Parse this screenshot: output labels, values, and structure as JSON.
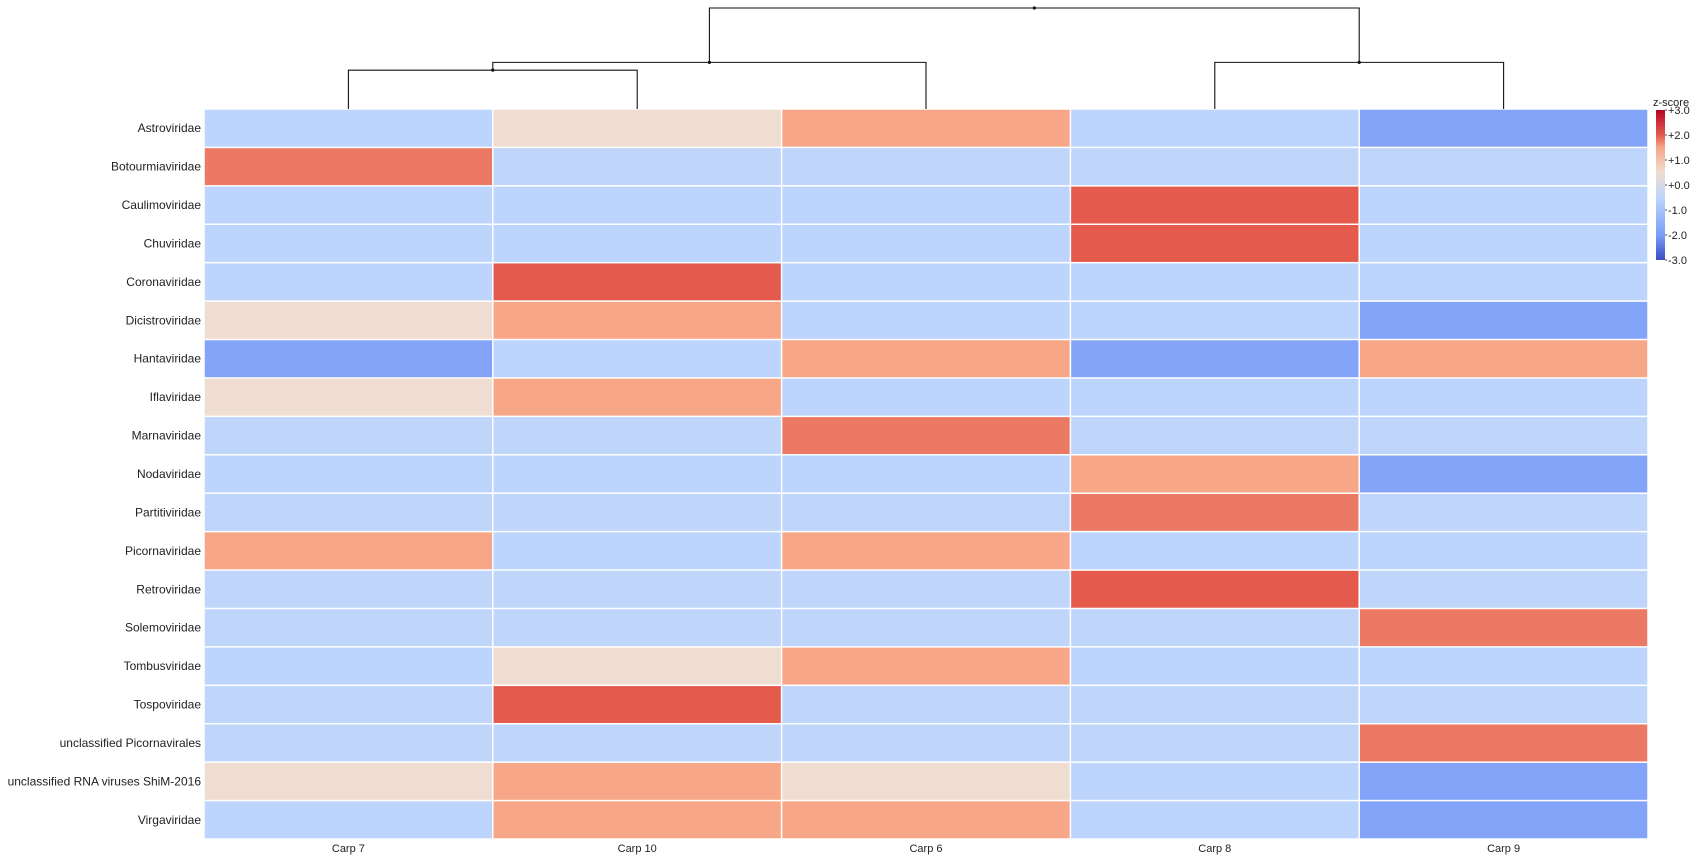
{
  "chart_data": {
    "type": "heatmap",
    "columns": [
      "Carp 7",
      "Carp 10",
      "Carp 6",
      "Carp 8",
      "Carp 9"
    ],
    "rows": [
      "Astroviridae",
      "Botourmiaviridae",
      "Caulimoviridae",
      "Chuviridae",
      "Coronaviridae",
      "Dicistroviridae",
      "Hantaviridae",
      "Iflaviridae",
      "Marnaviridae",
      "Nodaviridae",
      "Partitiviridae",
      "Picornaviridae",
      "Retroviridae",
      "Solemoviridae",
      "Tombusviridae",
      "Tospoviridae",
      "unclassified Picornavirales",
      "unclassified RNA viruses ShiM-2016",
      "Virgaviridae"
    ],
    "values": [
      [
        -0.5,
        0.5,
        1.5,
        -0.5,
        -1.8
      ],
      [
        1.8,
        -0.45,
        -0.45,
        -0.45,
        -0.45
      ],
      [
        -0.5,
        -0.5,
        -0.5,
        2.0,
        -0.5
      ],
      [
        -0.5,
        -0.5,
        -0.5,
        2.0,
        -0.5
      ],
      [
        -0.5,
        2.0,
        -0.5,
        -0.5,
        -0.5
      ],
      [
        0.5,
        1.5,
        -0.5,
        -0.5,
        -1.8
      ],
      [
        -1.8,
        -0.5,
        1.5,
        -1.8,
        1.5
      ],
      [
        0.5,
        1.5,
        -0.5,
        -0.5,
        -0.5
      ],
      [
        -0.45,
        -0.45,
        1.8,
        -0.45,
        -0.45
      ],
      [
        -0.5,
        -0.5,
        -0.5,
        1.5,
        -1.8
      ],
      [
        -0.45,
        -0.45,
        -0.45,
        1.8,
        -0.45
      ],
      [
        1.5,
        -0.5,
        1.5,
        -0.5,
        -0.5
      ],
      [
        -0.45,
        -0.45,
        -0.45,
        2.0,
        -0.45
      ],
      [
        -0.45,
        -0.45,
        -0.45,
        -0.45,
        1.8
      ],
      [
        -0.5,
        0.5,
        1.5,
        -0.5,
        -0.5
      ],
      [
        -0.45,
        2.0,
        -0.45,
        -0.45,
        -0.45
      ],
      [
        -0.45,
        -0.45,
        -0.45,
        -0.45,
        1.8
      ],
      [
        0.5,
        1.5,
        0.5,
        -0.5,
        -1.8
      ],
      [
        -0.5,
        1.5,
        1.5,
        -0.5,
        -1.8
      ]
    ],
    "color_scale": {
      "title": "z-score",
      "min": -3.0,
      "max": 3.0,
      "ticks": [
        3,
        2,
        1,
        0,
        -1,
        -2,
        -3
      ],
      "tick_labels": [
        "+3.0",
        "+2.0",
        "+1.0",
        "+0.0",
        "-1.0",
        "-2.0",
        "-3.0"
      ],
      "stops": [
        {
          "value": -3.0,
          "color": "#3b4cc0"
        },
        {
          "value": -2.0,
          "color": "#7a9df8"
        },
        {
          "value": -0.5,
          "color": "#bdd5fc"
        },
        {
          "value": 0.5,
          "color": "#efddd1"
        },
        {
          "value": 1.5,
          "color": "#f7a687"
        },
        {
          "value": 2.0,
          "color": "#e45b4d"
        },
        {
          "value": 3.0,
          "color": "#b40426"
        }
      ]
    },
    "column_dendrogram": {
      "leaf_order": [
        "Carp 7",
        "Carp 10",
        "Carp 6",
        "Carp 8",
        "Carp 9"
      ],
      "merges": [
        {
          "left": "Carp 7",
          "right": "Carp 10",
          "height": 1.0
        },
        {
          "left": "Carp 8",
          "right": "Carp 9",
          "height": 1.2
        },
        {
          "left": "cluster(Carp 7, Carp 10)",
          "right": "Carp 6",
          "height": 1.2
        },
        {
          "left": "cluster(Carp 7, Carp 10, Carp 6)",
          "right": "cluster(Carp 8, Carp 9)",
          "height": 2.6
        }
      ]
    },
    "legend_position": "top-right"
  }
}
